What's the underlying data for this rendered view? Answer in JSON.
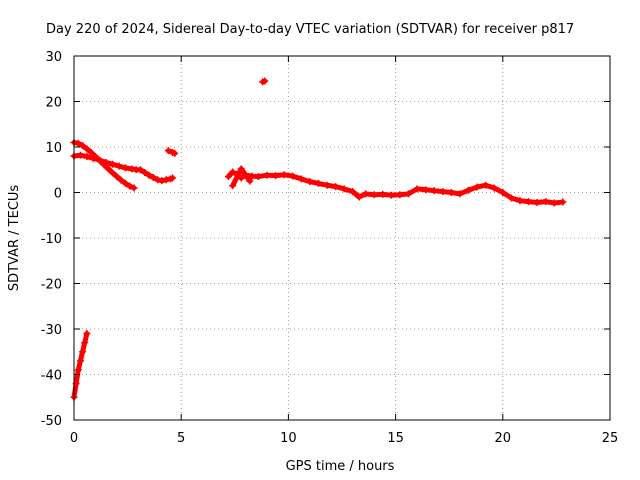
{
  "colors": {
    "series": "#ff0000",
    "grid": "#a0a0a0",
    "axis": "#000000",
    "background": "#ffffff"
  },
  "chart_data": {
    "type": "scatter",
    "title": "Day 220 of 2024, Sidereal Day-to-day VTEC variation (SDTVAR) for receiver p817",
    "xlabel": "GPS time / hours",
    "ylabel": "SDTVAR / TECUs",
    "xlim": [
      0,
      25
    ],
    "ylim": [
      -50,
      30
    ],
    "xticks": [
      0,
      5,
      10,
      15,
      20,
      25
    ],
    "yticks": [
      -50,
      -40,
      -30,
      -20,
      -10,
      0,
      10,
      20,
      30
    ],
    "grid": true,
    "marker": "plus",
    "series": [
      {
        "name": "SDTVAR",
        "x": [
          0.0,
          0.1,
          0.2,
          0.3,
          0.4,
          0.5,
          0.6,
          0.0,
          0.2,
          0.4,
          0.6,
          0.8,
          1.0,
          1.2,
          1.4,
          1.6,
          1.8,
          2.0,
          2.2,
          2.4,
          2.6,
          2.8,
          0.0,
          0.3,
          0.6,
          0.9,
          1.2,
          1.5,
          1.8,
          2.1,
          2.4,
          2.7,
          2.9,
          3.1,
          3.3,
          3.5,
          3.7,
          3.9,
          4.1,
          4.3,
          4.5,
          4.6,
          4.4,
          4.6,
          4.7,
          8.8,
          8.9,
          7.2,
          7.4,
          7.6,
          7.8,
          8.0,
          8.3,
          8.6,
          9.0,
          9.4,
          9.8,
          10.2,
          10.6,
          11.0,
          11.4,
          11.8,
          12.2,
          12.6,
          13.0,
          13.3,
          13.6,
          14.0,
          14.4,
          14.8,
          15.2,
          15.6,
          16.0,
          16.4,
          16.8,
          17.2,
          17.6,
          18.0,
          18.4,
          18.8,
          19.2,
          19.6,
          20.0,
          20.4,
          20.8,
          21.2,
          21.6,
          22.0,
          22.4,
          22.8,
          7.4,
          7.8,
          8.2
        ],
        "y": [
          -45,
          -42,
          -39,
          -37,
          -35,
          -33,
          -31,
          11,
          10.8,
          10.3,
          9.6,
          8.8,
          7.9,
          7.0,
          6.1,
          5.2,
          4.3,
          3.5,
          2.7,
          2.0,
          1.4,
          1.0,
          8,
          8.2,
          7.9,
          7.5,
          7.1,
          6.6,
          6.2,
          5.8,
          5.4,
          5.2,
          5.0,
          5.0,
          4.4,
          3.8,
          3.3,
          2.8,
          2.6,
          2.8,
          3.0,
          3.2,
          9.2,
          8.8,
          8.6,
          24.3,
          24.5,
          3.5,
          4.5,
          4.0,
          3.2,
          3.8,
          3.6,
          3.5,
          3.8,
          3.7,
          3.9,
          3.6,
          3.0,
          2.4,
          2.0,
          1.6,
          1.3,
          0.8,
          0.2,
          -1.0,
          -0.3,
          -0.5,
          -0.4,
          -0.6,
          -0.5,
          -0.3,
          0.8,
          0.6,
          0.4,
          0.2,
          0.0,
          -0.3,
          0.5,
          1.2,
          1.6,
          1.0,
          0.0,
          -1.2,
          -1.8,
          -2.0,
          -2.2,
          -2.0,
          -2.3,
          -2.1,
          1.5,
          5.2,
          2.5
        ]
      }
    ]
  }
}
